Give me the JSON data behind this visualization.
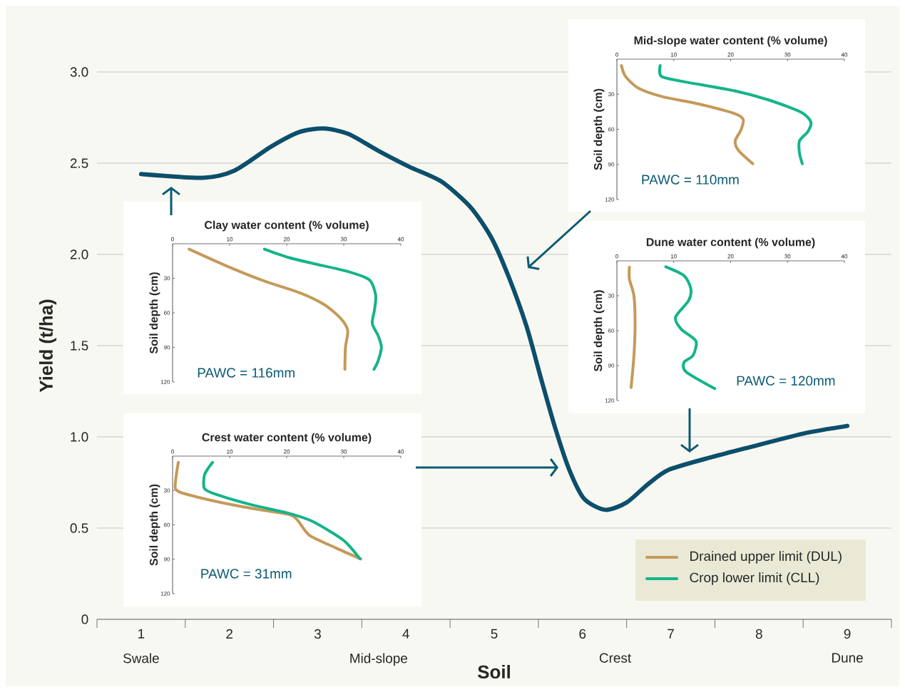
{
  "chart_data": [
    {
      "type": "line",
      "xlabel": "Soil",
      "ylabel": "Yield (t/ha)",
      "x": [
        1.0,
        1.7,
        2.06,
        2.47,
        2.79,
        3.07,
        3.35,
        3.68,
        4.04,
        4.4,
        4.73,
        4.97,
        5.17,
        5.37,
        5.53,
        5.69,
        5.85,
        6.02,
        6.26,
        6.5,
        6.74,
        6.98,
        7.47,
        7.95,
        8.52,
        9.0
      ],
      "series": [
        {
          "color": "#0b4f6c",
          "values": [
            2.44,
            2.42,
            2.46,
            2.59,
            2.67,
            2.69,
            2.66,
            2.57,
            2.48,
            2.4,
            2.26,
            2.09,
            1.87,
            1.6,
            1.32,
            1.05,
            0.82,
            0.66,
            0.6,
            0.64,
            0.74,
            0.82,
            0.89,
            0.95,
            1.02,
            1.06
          ]
        }
      ],
      "xlim": [
        0.5,
        9.5
      ],
      "ylim": [
        0,
        3
      ],
      "xticks": [
        1,
        2,
        3,
        4,
        5,
        6,
        7,
        8,
        9
      ],
      "yticks": [
        0,
        0.5,
        {
          "value": 1,
          "label": "1.0"
        },
        1.5,
        {
          "value": 2,
          "label": "2.0"
        },
        2.5,
        {
          "value": 3,
          "label": "3.0"
        }
      ],
      "grid": "y",
      "annotations": [
        "Swale",
        "Mid-slope",
        "Crest",
        "Dune"
      ]
    },
    {
      "type": "line",
      "title": "Clay water content (% volume)",
      "ylabel": "Soil depth (cm)",
      "xlim": [
        0,
        40
      ],
      "ylim": [
        120,
        0
      ],
      "xticks": [
        0,
        10,
        20,
        30,
        40
      ],
      "yticks": [
        30,
        60,
        90,
        120
      ],
      "legend": "bottom right",
      "annotations": [
        "PAWC = 116mm"
      ],
      "series": [
        {
          "name": "Drained upper limit (DUL)",
          "color": "#c49a5a",
          "x": [
            2.9,
            9.8,
            16.1,
            22.3,
            26.6,
            29.5,
            30.7,
            30.3,
            30.2
          ],
          "values": [
            4.7,
            20,
            32.4,
            42.6,
            52.9,
            65,
            75.4,
            89.8,
            109
          ]
        },
        {
          "name": "Crop lower limit (CLL)",
          "color": "#14b48a",
          "x": [
            16.1,
            20.3,
            24.5,
            30.8,
            34.5,
            35.6,
            35.4,
            35,
            36,
            36.6,
            36,
            35.3
          ],
          "values": [
            4.7,
            11.9,
            17,
            24.2,
            31.4,
            44.7,
            57,
            69.3,
            79.5,
            89.8,
            102,
            109
          ]
        }
      ]
    },
    {
      "type": "line",
      "title": "Crest water content (% volume)",
      "ylabel": "Soil depth (cm)",
      "xlim": [
        0,
        40
      ],
      "ylim": [
        120,
        0
      ],
      "xticks": [
        0,
        10,
        20,
        30,
        40
      ],
      "yticks": [
        30,
        60,
        90,
        120
      ],
      "annotations": [
        "PAWC = 31mm"
      ],
      "series": [
        {
          "color": "#c49a5a",
          "x": [
            1.0,
            0.6,
            0.5,
            1.9,
            7.7,
            14,
            20.3,
            21.9,
            24,
            28.7,
            33
          ],
          "values": [
            5.5,
            18.3,
            28.5,
            32.5,
            39.6,
            45.7,
            50.8,
            55.9,
            69.1,
            80.3,
            89.8
          ]
        },
        {
          "color": "#14b48a",
          "x": [
            7,
            5.6,
            5.6,
            7.7,
            14,
            20.3,
            24.5,
            29.9,
            32.8
          ],
          "values": [
            5.5,
            16.3,
            28.5,
            33.5,
            42.7,
            49.8,
            56.9,
            73.2,
            89.4
          ]
        }
      ]
    },
    {
      "type": "line",
      "title": "Mid-slope water content (% volume)",
      "ylabel": "Soil depth (cm)",
      "xlim": [
        0,
        40
      ],
      "ylim": [
        120,
        0
      ],
      "xticks": [
        0,
        10,
        20,
        30,
        40
      ],
      "yticks": [
        30,
        60,
        90,
        120
      ],
      "annotations": [
        "PAWC = 110mm"
      ],
      "series": [
        {
          "color": "#c49a5a",
          "x": [
            0.8,
            1.5,
            3.8,
            8,
            14.3,
            20.6,
            22.2,
            21.8,
            20.8,
            21.4,
            23.9
          ],
          "values": [
            5.5,
            14.7,
            24.9,
            32.1,
            38.2,
            46.4,
            51.5,
            60.7,
            69.9,
            78.1,
            89.4
          ]
        },
        {
          "color": "#14b48a",
          "x": [
            7.6,
            7.8,
            11.3,
            20.6,
            26.9,
            32.4,
            34.1,
            33.6,
            32.1,
            32.1,
            32.6
          ],
          "values": [
            5.5,
            14.7,
            18.8,
            27,
            35.2,
            45.4,
            53.6,
            61.8,
            69.9,
            80.2,
            89.4
          ]
        }
      ]
    },
    {
      "type": "line",
      "title": "Dune water content (% volume)",
      "ylabel": "Soil depth (cm)",
      "xlim": [
        0,
        40
      ],
      "ylim": [
        120,
        0
      ],
      "xticks": [
        0,
        10,
        20,
        30,
        40
      ],
      "yticks": [
        30,
        60,
        90,
        120
      ],
      "annotations": [
        "PAWC = 120mm"
      ],
      "series": [
        {
          "color": "#c49a5a",
          "x": [
            2.2,
            2.2,
            3,
            3.2,
            3,
            2.5
          ],
          "values": [
            5.5,
            15.7,
            30.1,
            54.6,
            81.2,
            108.8
          ]
        },
        {
          "color": "#14b48a",
          "x": [
            8.6,
            11.8,
            13,
            12.6,
            10.3,
            11.3,
            13.9,
            13.4,
            11.8,
            12.2,
            17.2
          ],
          "values": [
            5.1,
            12.7,
            23.9,
            34.2,
            48.5,
            58.7,
            68.9,
            81.2,
            87.3,
            95.5,
            109.8
          ]
        }
      ]
    }
  ]
}
